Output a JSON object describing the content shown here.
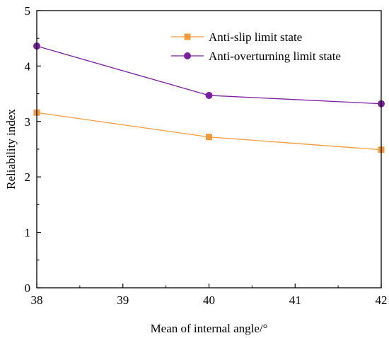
{
  "chart_data": {
    "type": "line",
    "title": "",
    "xlabel": "Mean of internal angle/°",
    "ylabel": "Reliability index",
    "xlim": [
      38,
      42
    ],
    "ylim": [
      0,
      5
    ],
    "x_ticks": [
      "38",
      "39",
      "40",
      "41",
      "42"
    ],
    "y_ticks": [
      "0",
      "1",
      "2",
      "3",
      "4",
      "5"
    ],
    "grid": false,
    "legend_position": "top-right",
    "series": [
      {
        "name": "Anti-slip limit state",
        "x": [
          38,
          40,
          42
        ],
        "y": [
          3.16,
          2.72,
          2.49
        ],
        "color": "#F59A3C",
        "marker": "square"
      },
      {
        "name": "Anti-overturning limit state",
        "x": [
          38,
          40,
          42
        ],
        "y": [
          4.36,
          3.47,
          3.32
        ],
        "color": "#7B1FA2",
        "marker": "circle"
      }
    ]
  }
}
